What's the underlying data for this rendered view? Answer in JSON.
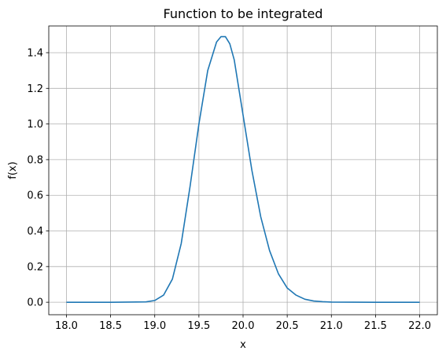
{
  "chart_data": {
    "type": "line",
    "title": "Function to be integrated",
    "xlabel": "x",
    "ylabel": "f(x)",
    "xlim": [
      17.8,
      22.2
    ],
    "ylim": [
      -0.07,
      1.55
    ],
    "grid": true,
    "x_ticks": [
      18.0,
      18.5,
      19.0,
      19.5,
      20.0,
      20.5,
      21.0,
      21.5,
      22.0
    ],
    "x_tick_labels": [
      "18.0",
      "18.5",
      "19.0",
      "19.5",
      "20.0",
      "20.5",
      "21.0",
      "21.5",
      "22.0"
    ],
    "y_ticks": [
      0.0,
      0.2,
      0.4,
      0.6,
      0.8,
      1.0,
      1.2,
      1.4
    ],
    "y_tick_labels": [
      "0.0",
      "0.2",
      "0.4",
      "0.6",
      "0.8",
      "1.0",
      "1.2",
      "1.4"
    ],
    "series": [
      {
        "color": "#1f77b4",
        "x": [
          18.0,
          18.5,
          18.9,
          19.0,
          19.1,
          19.2,
          19.3,
          19.4,
          19.5,
          19.6,
          19.7,
          19.75,
          19.8,
          19.85,
          19.9,
          20.0,
          20.1,
          20.2,
          20.3,
          20.4,
          20.5,
          20.6,
          20.7,
          20.8,
          20.9,
          21.0,
          21.5,
          22.0
        ],
        "y": [
          0.0,
          0.0,
          0.002,
          0.01,
          0.04,
          0.13,
          0.33,
          0.65,
          1.0,
          1.3,
          1.46,
          1.49,
          1.49,
          1.45,
          1.36,
          1.05,
          0.74,
          0.48,
          0.29,
          0.16,
          0.08,
          0.04,
          0.017,
          0.007,
          0.003,
          0.001,
          0.0,
          0.0
        ]
      }
    ]
  }
}
